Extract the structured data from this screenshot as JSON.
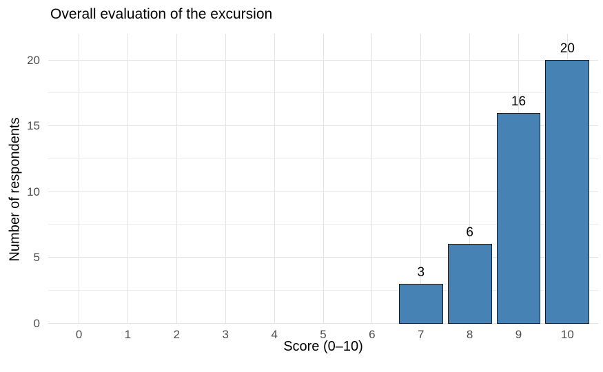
{
  "chart_data": {
    "type": "bar",
    "title": "Overall evaluation of the excursion",
    "xlabel": "Score (0–10)",
    "ylabel": "Number of respondents",
    "x_ticks": [
      0,
      1,
      2,
      3,
      4,
      5,
      6,
      7,
      8,
      9,
      10
    ],
    "y_ticks": [
      0,
      5,
      10,
      15,
      20
    ],
    "y_minor_ticks": [
      2.5,
      7.5,
      12.5,
      17.5
    ],
    "xlim": [
      -0.63,
      10.63
    ],
    "ylim": [
      0,
      22
    ],
    "bar_width": 0.9,
    "categories": [
      7,
      8,
      9,
      10
    ],
    "values": [
      3,
      6,
      16,
      20
    ],
    "show_value_labels": true,
    "legend": "none",
    "grid": "on",
    "colors": {
      "bar_fill": "#4682b4",
      "bar_stroke": "#1a1a1a",
      "grid_major": "#e3e3e3",
      "grid_minor": "#eeeeee",
      "tick_label": "#4d4d4d",
      "text": "#000000",
      "background": "#ffffff"
    }
  }
}
